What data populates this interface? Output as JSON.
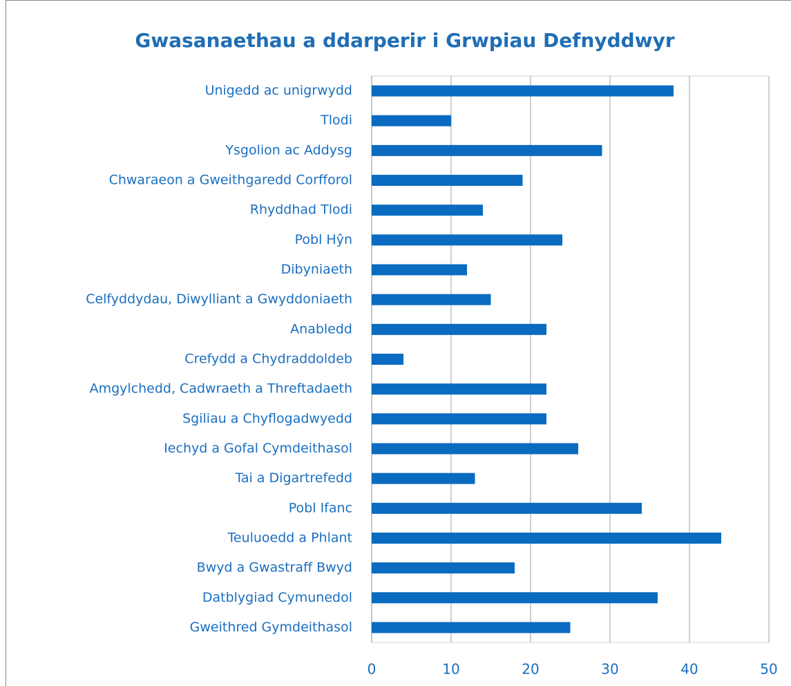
{
  "chart_data": {
    "type": "hbar",
    "title": "Gwasanaethau a ddarperir i Grwpiau Defnyddwyr",
    "categories": [
      "Unigedd ac unigrwydd",
      "Tlodi",
      "Ysgolion ac Addysg",
      "Chwaraeon a Gweithgaredd Corfforol",
      "Rhyddhad Tlodi",
      "Pobl Hŷn",
      "Dibyniaeth",
      "Celfyddydau, Diwylliant a Gwyddoniaeth",
      "Anabledd",
      "Crefydd a Chydraddoldeb",
      "Amgylchedd, Cadwraeth a Threftadaeth",
      "Sgiliau a Chyflogadwyedd",
      "Iechyd a Gofal Cymdeithasol",
      "Tai a Digartrefedd",
      "Pobl Ifanc",
      "Teuluoedd a Phlant",
      "Bwyd a Gwastraff Bwyd",
      "Datblygiad Cymunedol",
      "Gweithred Gymdeithasol"
    ],
    "values": [
      38,
      10,
      29,
      19,
      14,
      24,
      12,
      15,
      22,
      4,
      22,
      22,
      26,
      13,
      34,
      44,
      18,
      36,
      25
    ],
    "color": "#0a6bc0",
    "xlim": [
      0,
      50
    ],
    "xticks": [
      0,
      10,
      20,
      30,
      40,
      50
    ],
    "grid": true
  }
}
